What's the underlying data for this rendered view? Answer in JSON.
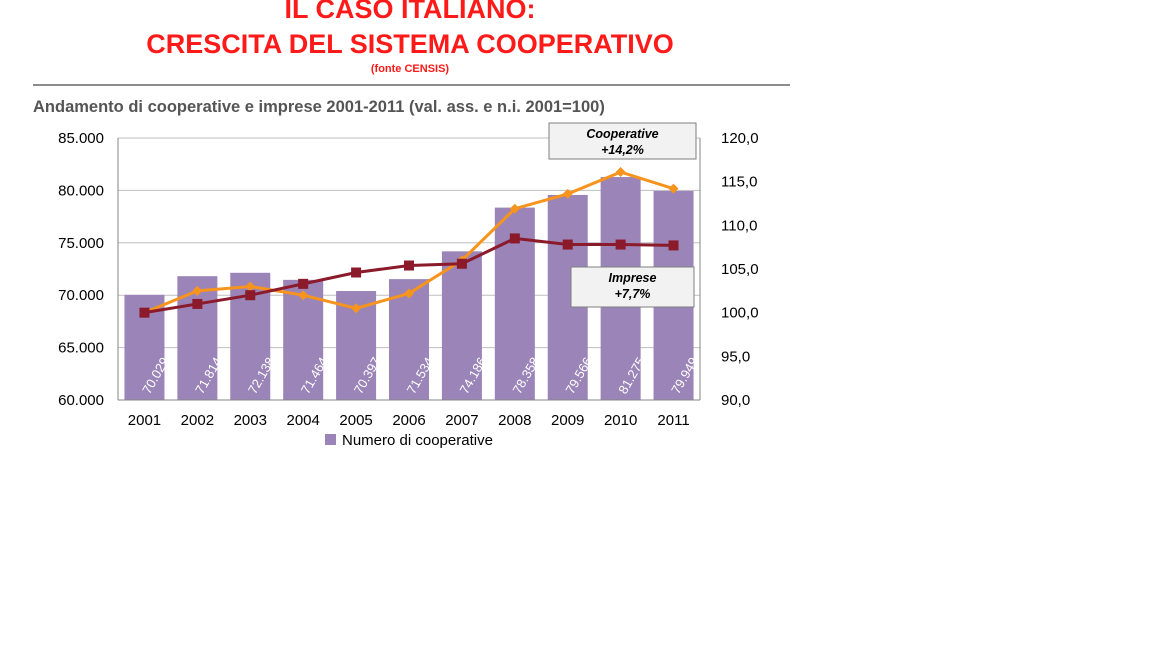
{
  "header": {
    "title_line1": "IL CASO ITALIANO:",
    "title_line2": "CRESCITA DEL SISTEMA COOPERATIVO",
    "source": "(fonte CENSIS)"
  },
  "colors": {
    "title": "#ff1a1a",
    "bars": "#9b84b7",
    "cooperative_line": "#f7941d",
    "imprese_line": "#8b1a2b"
  },
  "chart_data": {
    "type": "bar",
    "title": "Andamento di cooperative e imprese  2001-2011 (val. ass. e n.i. 2001=100)",
    "categories": [
      "2001",
      "2002",
      "2003",
      "2004",
      "2005",
      "2006",
      "2007",
      "2008",
      "2009",
      "2010",
      "2011"
    ],
    "legend": {
      "position": "bottom",
      "label": "Numero di cooperative"
    },
    "grid": true,
    "y_left": {
      "ylim": [
        60000,
        85000
      ],
      "ticks": [
        60000,
        65000,
        70000,
        75000,
        80000,
        85000
      ],
      "tick_labels": [
        "60.000",
        "65.000",
        "70.000",
        "75.000",
        "80.000",
        "85.000"
      ]
    },
    "y_right": {
      "ylim": [
        90,
        120
      ],
      "ticks": [
        90,
        95,
        100,
        105,
        110,
        115,
        120
      ],
      "tick_labels": [
        "90,0",
        "95,0",
        "100,0",
        "105,0",
        "110,0",
        "115,0",
        "120,0"
      ]
    },
    "bars": {
      "name": "Numero di cooperative",
      "values": [
        70029,
        71814,
        72138,
        71464,
        70397,
        71534,
        74186,
        78358,
        79566,
        81275,
        79949
      ],
      "labels": [
        "70.029",
        "71.814",
        "72.138",
        "71.464",
        "70.397",
        "71.534",
        "74.186",
        "78.358",
        "79.566",
        "81.275",
        "79.949"
      ]
    },
    "lines": [
      {
        "key": "cooperative",
        "axis": "right",
        "marker": "diamond",
        "values": [
          100.0,
          102.5,
          103.0,
          102.0,
          100.5,
          102.2,
          106.0,
          111.9,
          113.6,
          116.1,
          114.2
        ]
      },
      {
        "key": "imprese",
        "axis": "right",
        "marker": "square",
        "values": [
          100.0,
          101.0,
          102.0,
          103.3,
          104.6,
          105.4,
          105.6,
          108.5,
          107.8,
          107.8,
          107.7
        ]
      }
    ],
    "callouts": [
      {
        "key": "cooperative",
        "line1": "Cooperative",
        "line2": "+14,2%"
      },
      {
        "key": "imprese",
        "line1": "Imprese",
        "line2": "+7,7%"
      }
    ]
  }
}
